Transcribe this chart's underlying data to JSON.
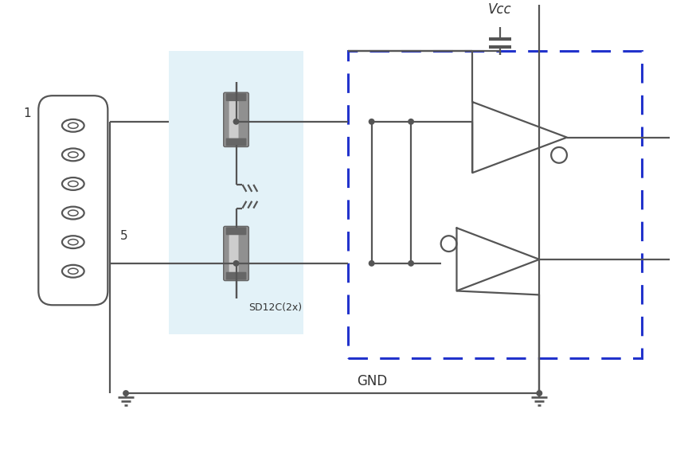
{
  "bg_color": "#ffffff",
  "line_color": "#555555",
  "dashed_box_color": "#2233cc",
  "shaded_box_color": "#cce8f4",
  "text_color": "#333333",
  "label_1": "1",
  "label_5": "5",
  "label_vcc": "Vcc",
  "label_gnd": "GND",
  "label_sd12c": "SD12C(2x)"
}
